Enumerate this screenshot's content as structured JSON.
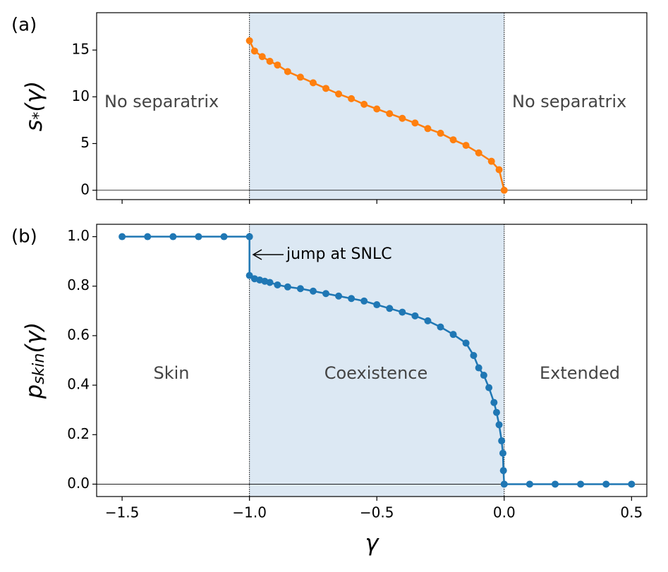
{
  "chart_data": [
    {
      "type": "line",
      "panel_label": "(a)",
      "ylabel": {
        "base": "s",
        "sub": "*",
        "rest": "(γ)"
      },
      "color": "#ff7f0e",
      "x": [
        -1.0,
        -0.98,
        -0.95,
        -0.92,
        -0.89,
        -0.85,
        -0.8,
        -0.75,
        -0.7,
        -0.65,
        -0.6,
        -0.55,
        -0.5,
        -0.45,
        -0.4,
        -0.35,
        -0.3,
        -0.25,
        -0.2,
        -0.15,
        -0.1,
        -0.05,
        -0.02,
        0.0
      ],
      "values": [
        16.0,
        14.9,
        14.3,
        13.8,
        13.4,
        12.7,
        12.1,
        11.5,
        10.9,
        10.3,
        9.8,
        9.2,
        8.7,
        8.2,
        7.7,
        7.2,
        6.6,
        6.1,
        5.4,
        4.8,
        4.0,
        3.1,
        2.2,
        0.0
      ],
      "xlim": [
        -1.6,
        0.56
      ],
      "ylim": [
        -1.0,
        19.0
      ],
      "xticks": [
        -1.5,
        -1.0,
        -0.5,
        0.0,
        0.5
      ],
      "yticks": [
        0,
        5,
        10,
        15
      ],
      "shade": [
        -1.0,
        0.0
      ],
      "vlines": [
        -1.0,
        0.0
      ],
      "hline": 0,
      "annotations": [
        "No separatrix",
        "No separatrix"
      ]
    },
    {
      "type": "line",
      "panel_label": "(b)",
      "ylabel": {
        "base": "p",
        "sub": "skin",
        "rest": "(γ)"
      },
      "xlabel": "γ",
      "color": "#1f77b4",
      "x": [
        -1.5,
        -1.4,
        -1.3,
        -1.2,
        -1.1,
        -1.0,
        -1.0,
        -0.98,
        -0.96,
        -0.94,
        -0.92,
        -0.89,
        -0.85,
        -0.8,
        -0.75,
        -0.7,
        -0.65,
        -0.6,
        -0.55,
        -0.5,
        -0.45,
        -0.4,
        -0.35,
        -0.3,
        -0.25,
        -0.2,
        -0.15,
        -0.12,
        -0.1,
        -0.08,
        -0.06,
        -0.04,
        -0.03,
        -0.02,
        -0.01,
        -0.005,
        -0.003,
        0.0,
        0.1,
        0.2,
        0.3,
        0.4,
        0.5
      ],
      "values": [
        1.0,
        1.0,
        1.0,
        1.0,
        1.0,
        1.0,
        0.843,
        0.83,
        0.825,
        0.82,
        0.815,
        0.805,
        0.797,
        0.79,
        0.78,
        0.77,
        0.76,
        0.75,
        0.74,
        0.725,
        0.71,
        0.695,
        0.68,
        0.66,
        0.635,
        0.605,
        0.57,
        0.52,
        0.47,
        0.44,
        0.39,
        0.33,
        0.29,
        0.24,
        0.175,
        0.125,
        0.055,
        0.0,
        0.0,
        0.0,
        0.0,
        0.0,
        0.0
      ],
      "xlim": [
        -1.6,
        0.56
      ],
      "ylim": [
        -0.05,
        1.05
      ],
      "xticks": [
        {
          "value": -1.5,
          "label": "−1.5"
        },
        {
          "value": -1.0,
          "label": "−1.0"
        },
        {
          "value": -0.5,
          "label": "−0.5"
        },
        {
          "value": 0.0,
          "label": "0.0"
        },
        {
          "value": 0.5,
          "label": "0.5"
        }
      ],
      "yticks": [
        {
          "value": 0.0,
          "label": "0.0"
        },
        0.2,
        0.4,
        0.6,
        0.8,
        {
          "value": 1.0,
          "label": "1.0"
        }
      ],
      "shade": [
        -1.0,
        0.0
      ],
      "vlines": [
        -1.0,
        0.0
      ],
      "hline": 0,
      "annotations": [
        "jump at SNLC",
        "Skin",
        "Coexistence",
        "Extended"
      ]
    }
  ]
}
